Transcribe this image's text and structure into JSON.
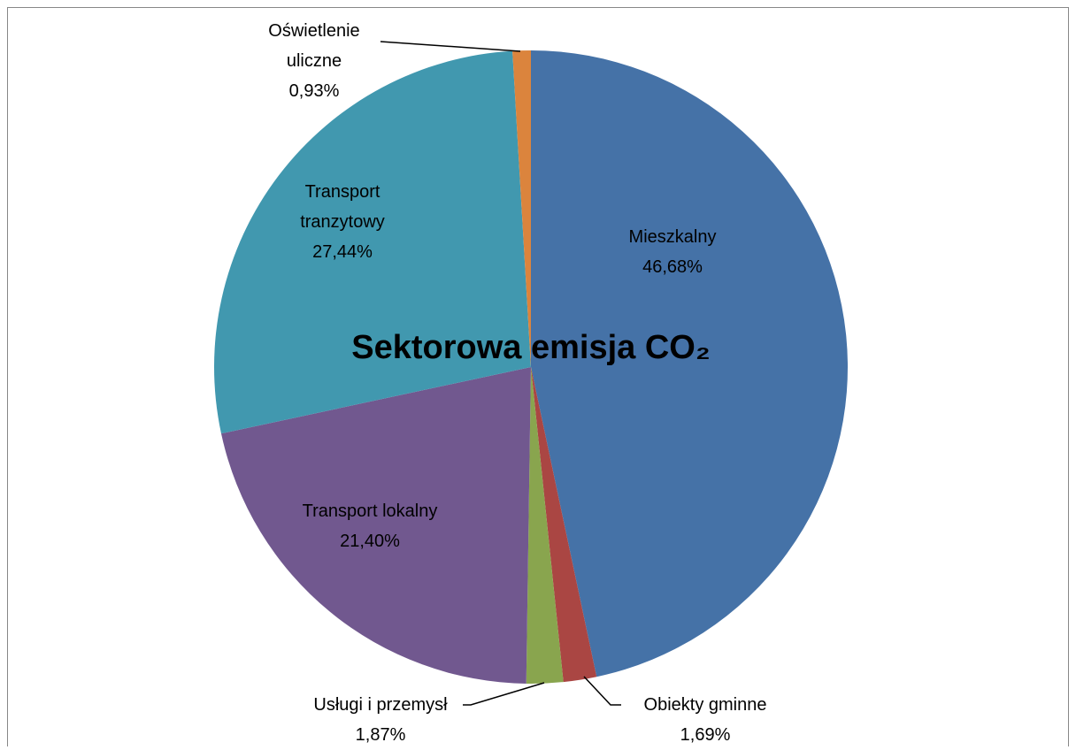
{
  "chart_data": {
    "type": "pie",
    "title": "Sektorowa emisja CO₂",
    "categories": [
      "Mieszkalny",
      "Obiekty gminne",
      "Usługi i przemysł",
      "Transport lokalny",
      "Transport tranzytowy",
      "Oświetlenie uliczne"
    ],
    "values": [
      46.68,
      1.69,
      1.87,
      21.4,
      27.44,
      0.93
    ],
    "value_labels": [
      "46,68%",
      "1,69%",
      "1,87%",
      "21,40%",
      "27,44%",
      "0,93%"
    ],
    "colors": [
      "#4572a7",
      "#aa4643",
      "#89a54e",
      "#71588f",
      "#4198af",
      "#db843d"
    ]
  }
}
